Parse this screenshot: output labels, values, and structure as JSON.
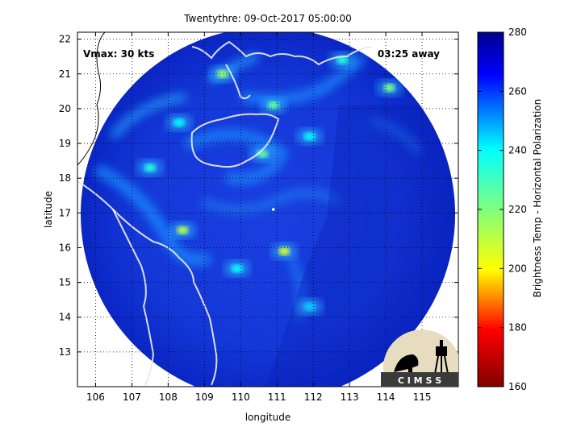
{
  "chart_data": {
    "type": "heatmap",
    "title": "Twentythre: 09-Oct-2017 05:00:00",
    "xlabel": "longitude",
    "ylabel": "latitude",
    "xlim": [
      105.5,
      116
    ],
    "ylim": [
      12,
      22.2
    ],
    "xticks": [
      "106",
      "107",
      "108",
      "109",
      "110",
      "111",
      "112",
      "113",
      "114",
      "115"
    ],
    "yticks": [
      "13",
      "14",
      "15",
      "16",
      "17",
      "18",
      "19",
      "20",
      "21",
      "22"
    ],
    "grid": true,
    "annotations": {
      "vmax": "Vmax: 30 kts",
      "time_away": "03:25 away"
    },
    "center": {
      "lon": 110.9,
      "lat": 17.1
    },
    "colorbar": {
      "label": "Brightness Temp - Horizontal Polarization",
      "range": [
        160,
        280
      ],
      "ticks": [
        "280",
        "260",
        "240",
        "220",
        "200",
        "180",
        "160"
      ]
    },
    "hotspots": [
      {
        "lon": 108.4,
        "lat": 16.5,
        "tb": 210
      },
      {
        "lon": 111.2,
        "lat": 15.9,
        "tb": 205
      },
      {
        "lon": 109.5,
        "lat": 21.0,
        "tb": 215
      },
      {
        "lon": 110.9,
        "lat": 20.1,
        "tb": 225
      },
      {
        "lon": 114.1,
        "lat": 20.6,
        "tb": 220
      },
      {
        "lon": 112.8,
        "lat": 21.4,
        "tb": 235
      },
      {
        "lon": 110.6,
        "lat": 18.7,
        "tb": 225
      },
      {
        "lon": 107.5,
        "lat": 18.3,
        "tb": 235
      },
      {
        "lon": 109.9,
        "lat": 15.4,
        "tb": 240
      },
      {
        "lon": 111.9,
        "lat": 14.3,
        "tb": 245
      },
      {
        "lon": 108.3,
        "lat": 19.6,
        "tb": 240
      },
      {
        "lon": 111.9,
        "lat": 19.2,
        "tb": 240
      }
    ]
  },
  "logo": {
    "text": "C I M S S"
  }
}
